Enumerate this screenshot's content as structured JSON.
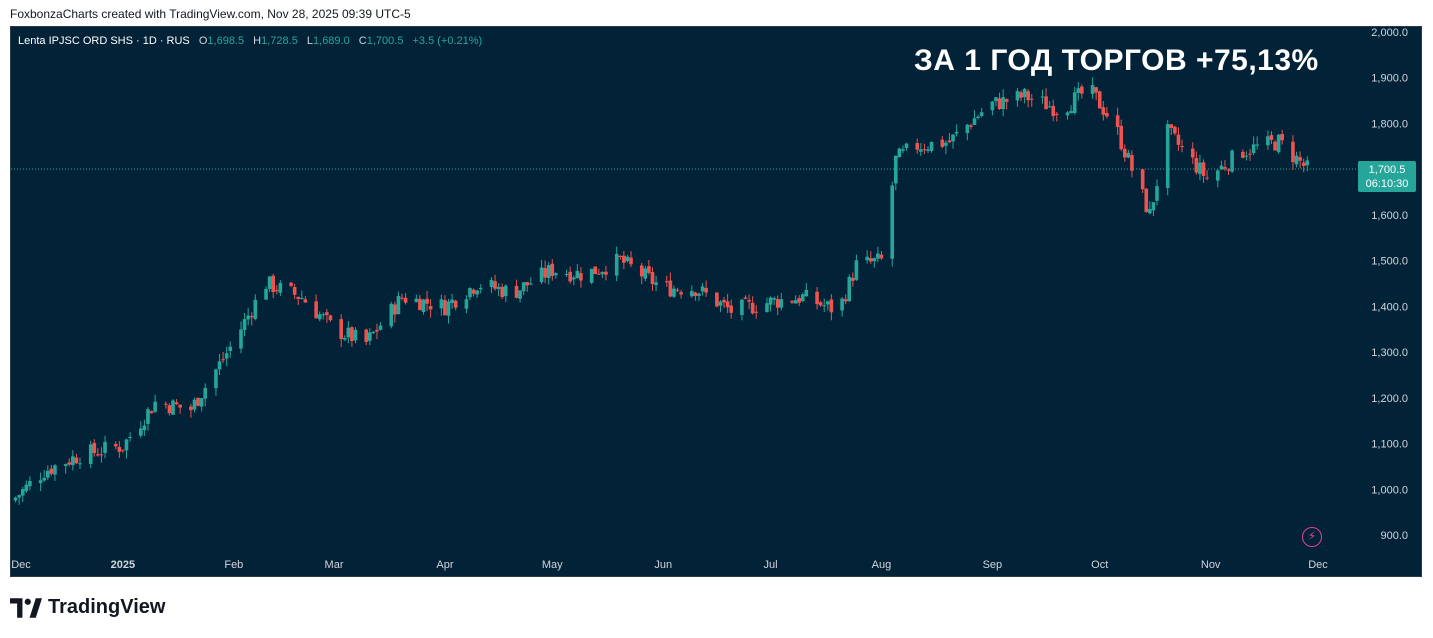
{
  "attribution": "FoxbonzaCharts created with TradingView.com, Nov 28, 2025 09:39 UTC-5",
  "legend": {
    "symbol": "Lenta IPJSC ORD SHS · 1D · RUS",
    "open_label": "O",
    "open": "1,698.5",
    "high_label": "H",
    "high": "1,728.5",
    "low_label": "L",
    "low": "1,689.0",
    "close_label": "C",
    "close": "1,700.5",
    "change": "+3.5 (+0.21%)"
  },
  "headline": "ЗА 1 ГОД ТОРГОВ +75,13%",
  "price_tag": {
    "price": "1,700.5",
    "countdown": "06:10:30"
  },
  "brand": "TradingView",
  "icons": {
    "alert": "lightning-icon",
    "logo": "tradingview-logo-icon"
  },
  "colors": {
    "up": "#26a69a",
    "down": "#ef5350",
    "background": "#022337",
    "accent_alert": "#e040a0"
  },
  "chart_data": {
    "type": "candlestick",
    "y_ticks": [
      "2,000.0",
      "1,900.0",
      "1,800.0",
      "1,700.0",
      "1,600.0",
      "1,500.0",
      "1,400.0",
      "1,300.0",
      "1,200.0",
      "1,100.0",
      "1,000.0",
      "900.0"
    ],
    "ylim": [
      900,
      2000
    ],
    "x_ticks": [
      "Dec",
      "2025",
      "Feb",
      "Mar",
      "Apr",
      "May",
      "Jun",
      "Jul",
      "Aug",
      "Sep",
      "Oct",
      "Nov",
      "Dec"
    ],
    "last_price": 1700.5,
    "close_series": [
      {
        "date": "2024-12-01",
        "close": 975
      },
      {
        "date": "2024-12-10",
        "close": 1040
      },
      {
        "date": "2024-12-20",
        "close": 1075
      },
      {
        "date": "2025-01-01",
        "close": 1095
      },
      {
        "date": "2025-01-10",
        "close": 1190
      },
      {
        "date": "2025-01-20",
        "close": 1175
      },
      {
        "date": "2025-01-31",
        "close": 1310
      },
      {
        "date": "2025-02-10",
        "close": 1450
      },
      {
        "date": "2025-02-20",
        "close": 1420
      },
      {
        "date": "2025-03-01",
        "close": 1350
      },
      {
        "date": "2025-03-10",
        "close": 1320
      },
      {
        "date": "2025-03-20",
        "close": 1420
      },
      {
        "date": "2025-04-01",
        "close": 1400
      },
      {
        "date": "2025-04-10",
        "close": 1450
      },
      {
        "date": "2025-04-20",
        "close": 1430
      },
      {
        "date": "2025-05-01",
        "close": 1480
      },
      {
        "date": "2025-05-10",
        "close": 1470
      },
      {
        "date": "2025-05-20",
        "close": 1500
      },
      {
        "date": "2025-06-01",
        "close": 1440
      },
      {
        "date": "2025-06-10",
        "close": 1440
      },
      {
        "date": "2025-06-20",
        "close": 1390
      },
      {
        "date": "2025-07-01",
        "close": 1410
      },
      {
        "date": "2025-07-10",
        "close": 1420
      },
      {
        "date": "2025-07-20",
        "close": 1390
      },
      {
        "date": "2025-07-25",
        "close": 1490
      },
      {
        "date": "2025-08-01",
        "close": 1500
      },
      {
        "date": "2025-08-05",
        "close": 1720
      },
      {
        "date": "2025-08-10",
        "close": 1750
      },
      {
        "date": "2025-08-20",
        "close": 1760
      },
      {
        "date": "2025-08-31",
        "close": 1840
      },
      {
        "date": "2025-09-10",
        "close": 1860
      },
      {
        "date": "2025-09-20",
        "close": 1830
      },
      {
        "date": "2025-09-28",
        "close": 1875
      },
      {
        "date": "2025-10-05",
        "close": 1800
      },
      {
        "date": "2025-10-15",
        "close": 1600
      },
      {
        "date": "2025-10-20",
        "close": 1780
      },
      {
        "date": "2025-10-31",
        "close": 1680
      },
      {
        "date": "2025-11-10",
        "close": 1740
      },
      {
        "date": "2025-11-20",
        "close": 1760
      },
      {
        "date": "2025-11-28",
        "close": 1700.5
      }
    ]
  }
}
